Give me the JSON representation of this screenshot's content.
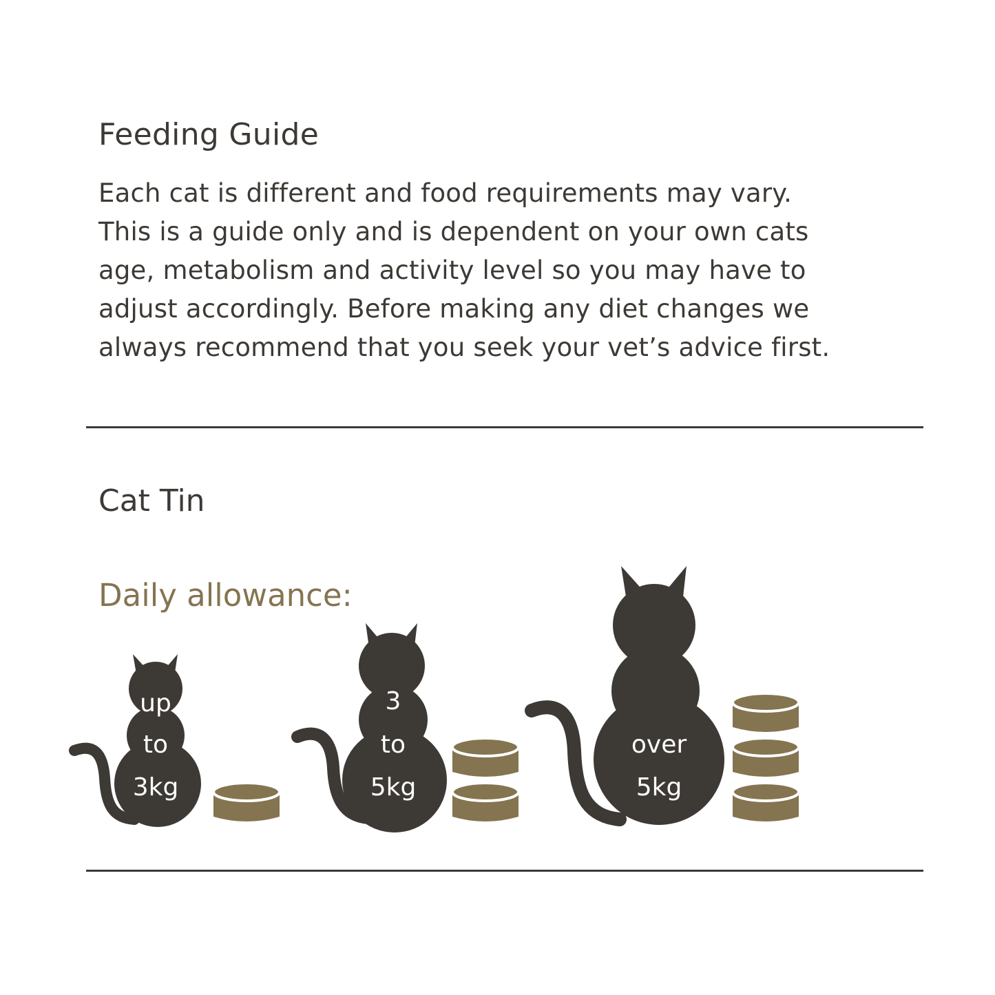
{
  "title": "Feeding Guide",
  "paragraph_lines": [
    "Each cat is different and food requirements may vary.",
    "This is a guide only and is dependent on your own cats",
    "age, metabolism and activity level so you may have to",
    "adjust accordingly. Before making any diet changes we",
    "always recommend that you seek your vet’s advice first."
  ],
  "section_title": "Cat Tin",
  "daily_label": "Daily allowance:",
  "colors": {
    "text": "#3d3935",
    "accent": "#857450"
  },
  "weights": [
    {
      "label_lines": [
        "up",
        "to",
        "3kg"
      ],
      "tins": 1
    },
    {
      "label_lines": [
        "3",
        "to",
        "5kg"
      ],
      "tins": 2
    },
    {
      "label_lines": [
        "over",
        "5kg"
      ],
      "tins": 3
    }
  ]
}
